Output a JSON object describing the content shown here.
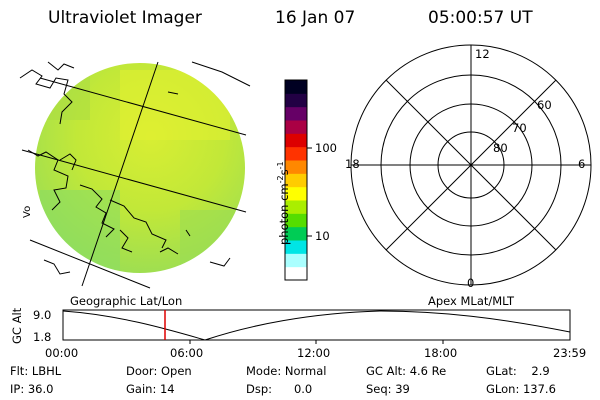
{
  "header": {
    "title": "Ultraviolet Imager",
    "date": "16 Jan 07",
    "time": "05:00:57 UT"
  },
  "colorbar": {
    "unit_base": "photon cm",
    "unit_exp1": "-2",
    "unit_mid": "s",
    "unit_exp2": "-1",
    "ticks": [
      {
        "label": "100",
        "value": 100
      },
      {
        "label": "10",
        "value": 10
      }
    ],
    "colors": [
      "#ffffff",
      "#aaffff",
      "#00e5e5",
      "#00cc55",
      "#55dd00",
      "#aaee00",
      "#ffff00",
      "#ffcc00",
      "#ff8800",
      "#ff3300",
      "#dd0000",
      "#aa0044",
      "#660066",
      "#220044",
      "#000022"
    ]
  },
  "left_panel_caption": "Geographic Lat/Lon",
  "right_panel_caption": "Apex MLat/MLT",
  "polar": {
    "mlt_labels": {
      "top": "12",
      "left": "18",
      "right": "6",
      "bottom": "0"
    },
    "lat_labels": [
      "60",
      "70",
      "80"
    ]
  },
  "alt_plot": {
    "ylabel": "GC Alt",
    "ymax": "9.0",
    "ymin": "1.8",
    "xticks": [
      "00:00",
      "06:00",
      "12:00",
      "18:00",
      "23:59"
    ],
    "current_time_fraction": 0.208
  },
  "status": {
    "flt": "Flt: LBHL",
    "ip": "IP: 36.0",
    "door": "Door: Open",
    "gain": "Gain: 14",
    "mode": "Mode: Normal",
    "dsp": "Dsp:      0.0",
    "gcalt": "GC Alt: 4.6 Re",
    "seq": "Seq: 39",
    "glat": "GLat:    2.9",
    "glon": "GLon: 137.6"
  },
  "map_fragment_label": "Vo"
}
